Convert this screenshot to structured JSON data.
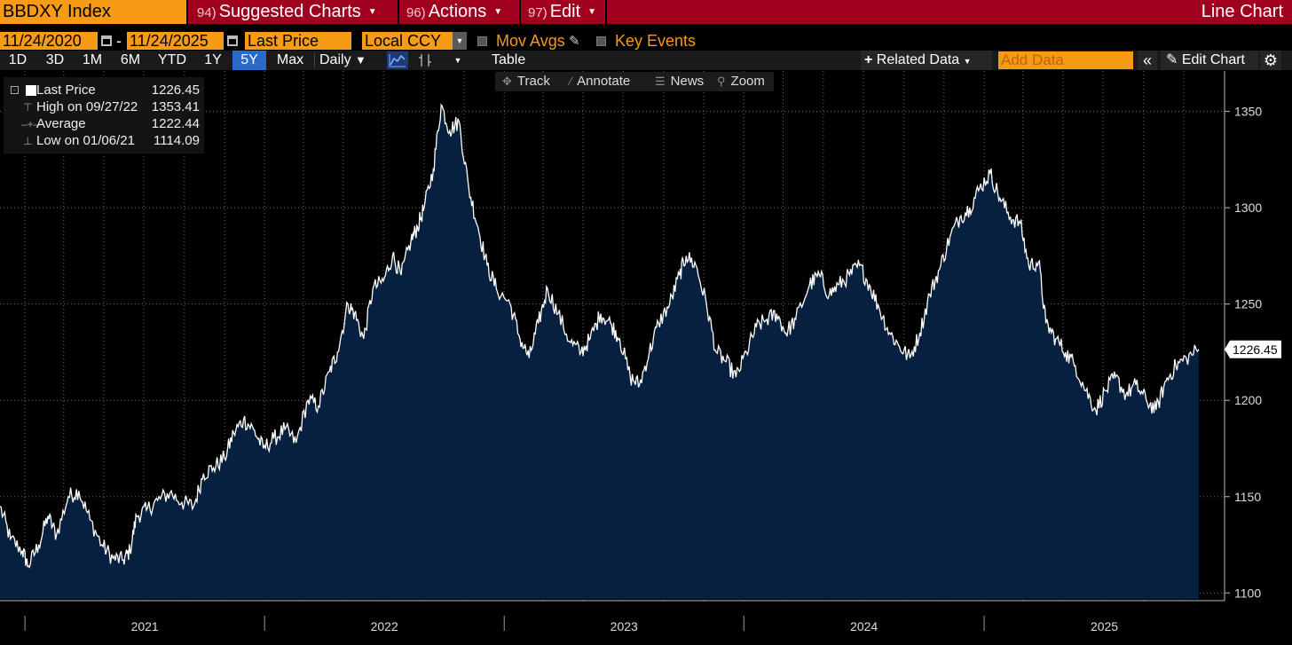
{
  "header": {
    "ticker": "BBDXY Index",
    "menus": [
      {
        "num": "94)",
        "label": "Suggested Charts"
      },
      {
        "num": "96)",
        "label": "Actions"
      },
      {
        "num": "97)",
        "label": "Edit"
      }
    ],
    "view_title": "Line Chart"
  },
  "range": {
    "start_date": "11/24/2020",
    "dash": "-",
    "end_date": "11/24/2025",
    "field": "Last Price",
    "currency": "Local CCY",
    "mov_avgs_label": "Mov Avgs",
    "key_events_label": "Key Events"
  },
  "periods": [
    "1D",
    "3D",
    "1M",
    "6M",
    "YTD",
    "1Y",
    "5Y",
    "Max"
  ],
  "active_period": "5Y",
  "frequency": "Daily",
  "table_label": "Table",
  "related_label": "Related Data",
  "add_data_placeholder": "Add Data",
  "edit_chart_label": "Edit Chart",
  "toolbar": {
    "track": "Track",
    "annotate": "Annotate",
    "news": "News",
    "zoom": "Zoom"
  },
  "legend": {
    "last_label": "Last Price",
    "last_value": "1226.45",
    "high_label": "High on 09/27/22",
    "high_value": "1353.41",
    "avg_label": "Average",
    "avg_value": "1222.44",
    "low_label": "Low on 01/06/21",
    "low_value": "1114.09"
  },
  "colors": {
    "line": "#ffffff",
    "fill": "#08203f",
    "accent_orange": "#f79a14",
    "header_red": "#a0001d",
    "active_blue": "#2a6ac8"
  },
  "chart_data": {
    "type": "area",
    "series": [
      {
        "name": "Last Price",
        "points": [
          [
            "2020-11-24",
            1145
          ],
          [
            "2020-12-10",
            1128
          ],
          [
            "2020-12-28",
            1122
          ],
          [
            "2021-01-06",
            1114.09
          ],
          [
            "2021-01-22",
            1125
          ],
          [
            "2021-02-05",
            1140
          ],
          [
            "2021-02-18",
            1130
          ],
          [
            "2021-03-08",
            1150
          ],
          [
            "2021-03-24",
            1153
          ],
          [
            "2021-04-10",
            1138
          ],
          [
            "2021-04-28",
            1125
          ],
          [
            "2021-05-15",
            1118
          ],
          [
            "2021-05-31",
            1117
          ],
          [
            "2021-06-10",
            1122
          ],
          [
            "2021-06-20",
            1140
          ],
          [
            "2021-07-05",
            1143
          ],
          [
            "2021-07-22",
            1148
          ],
          [
            "2021-08-10",
            1152
          ],
          [
            "2021-08-28",
            1147
          ],
          [
            "2021-09-15",
            1145
          ],
          [
            "2021-09-30",
            1162
          ],
          [
            "2021-10-15",
            1165
          ],
          [
            "2021-11-01",
            1170
          ],
          [
            "2021-11-15",
            1183
          ],
          [
            "2021-11-30",
            1190
          ],
          [
            "2021-12-15",
            1185
          ],
          [
            "2021-12-30",
            1175
          ],
          [
            "2022-01-15",
            1180
          ],
          [
            "2022-02-01",
            1185
          ],
          [
            "2022-02-18",
            1178
          ],
          [
            "2022-03-08",
            1200
          ],
          [
            "2022-03-24",
            1197
          ],
          [
            "2022-04-10",
            1215
          ],
          [
            "2022-04-22",
            1225
          ],
          [
            "2022-05-08",
            1250
          ],
          [
            "2022-05-18",
            1245
          ],
          [
            "2022-06-01",
            1232
          ],
          [
            "2022-06-15",
            1258
          ],
          [
            "2022-07-01",
            1262
          ],
          [
            "2022-07-15",
            1275
          ],
          [
            "2022-07-28",
            1265
          ],
          [
            "2022-08-12",
            1283
          ],
          [
            "2022-08-22",
            1290
          ],
          [
            "2022-09-01",
            1300
          ],
          [
            "2022-09-15",
            1320
          ],
          [
            "2022-09-27",
            1353.41
          ],
          [
            "2022-10-10",
            1340
          ],
          [
            "2022-10-24",
            1345
          ],
          [
            "2022-11-08",
            1310
          ],
          [
            "2022-11-22",
            1290
          ],
          [
            "2022-12-06",
            1270
          ],
          [
            "2022-12-20",
            1258
          ],
          [
            "2023-01-10",
            1250
          ],
          [
            "2023-01-25",
            1232
          ],
          [
            "2023-02-08",
            1222
          ],
          [
            "2023-02-22",
            1240
          ],
          [
            "2023-03-08",
            1258
          ],
          [
            "2023-03-24",
            1245
          ],
          [
            "2023-04-12",
            1230
          ],
          [
            "2023-04-28",
            1225
          ],
          [
            "2023-05-12",
            1232
          ],
          [
            "2023-05-28",
            1245
          ],
          [
            "2023-06-12",
            1240
          ],
          [
            "2023-06-26",
            1232
          ],
          [
            "2023-07-12",
            1212
          ],
          [
            "2023-07-26",
            1208
          ],
          [
            "2023-08-10",
            1225
          ],
          [
            "2023-08-24",
            1240
          ],
          [
            "2023-09-10",
            1250
          ],
          [
            "2023-09-25",
            1265
          ],
          [
            "2023-10-05",
            1275
          ],
          [
            "2023-10-20",
            1270
          ],
          [
            "2023-11-05",
            1250
          ],
          [
            "2023-11-20",
            1225
          ],
          [
            "2023-12-05",
            1220
          ],
          [
            "2023-12-20",
            1212
          ],
          [
            "2024-01-05",
            1225
          ],
          [
            "2024-01-20",
            1238
          ],
          [
            "2024-02-05",
            1242
          ],
          [
            "2024-02-20",
            1245
          ],
          [
            "2024-03-05",
            1235
          ],
          [
            "2024-03-20",
            1242
          ],
          [
            "2024-04-10",
            1260
          ],
          [
            "2024-04-25",
            1265
          ],
          [
            "2024-05-10",
            1255
          ],
          [
            "2024-05-25",
            1260
          ],
          [
            "2024-06-10",
            1265
          ],
          [
            "2024-06-25",
            1270
          ],
          [
            "2024-07-10",
            1260
          ],
          [
            "2024-07-25",
            1248
          ],
          [
            "2024-08-10",
            1235
          ],
          [
            "2024-08-25",
            1228
          ],
          [
            "2024-09-10",
            1222
          ],
          [
            "2024-09-25",
            1235
          ],
          [
            "2024-10-10",
            1255
          ],
          [
            "2024-10-25",
            1268
          ],
          [
            "2024-11-10",
            1285
          ],
          [
            "2024-11-25",
            1295
          ],
          [
            "2024-12-10",
            1300
          ],
          [
            "2024-12-25",
            1310
          ],
          [
            "2025-01-10",
            1318
          ],
          [
            "2025-01-25",
            1305
          ],
          [
            "2025-02-10",
            1295
          ],
          [
            "2025-02-25",
            1292
          ],
          [
            "2025-03-10",
            1270
          ],
          [
            "2025-03-25",
            1272
          ],
          [
            "2025-04-05",
            1240
          ],
          [
            "2025-04-20",
            1232
          ],
          [
            "2025-05-05",
            1225
          ],
          [
            "2025-05-20",
            1218
          ],
          [
            "2025-06-05",
            1205
          ],
          [
            "2025-06-20",
            1195
          ],
          [
            "2025-07-05",
            1205
          ],
          [
            "2025-07-20",
            1212
          ],
          [
            "2025-08-05",
            1203
          ],
          [
            "2025-08-20",
            1208
          ],
          [
            "2025-09-05",
            1200
          ],
          [
            "2025-09-20",
            1195
          ],
          [
            "2025-10-05",
            1210
          ],
          [
            "2025-10-20",
            1218
          ],
          [
            "2025-11-05",
            1222
          ],
          [
            "2025-11-24",
            1226.45
          ]
        ]
      }
    ],
    "x_labels": [
      "2021",
      "2022",
      "2023",
      "2024",
      "2025"
    ],
    "y_ticks": [
      1100,
      1150,
      1200,
      1250,
      1300,
      1350
    ],
    "ylim": [
      1096,
      1371
    ],
    "x_range": [
      "2020-11-24",
      "2025-11-24"
    ],
    "last_value_label": "1226.45",
    "grid": true
  }
}
